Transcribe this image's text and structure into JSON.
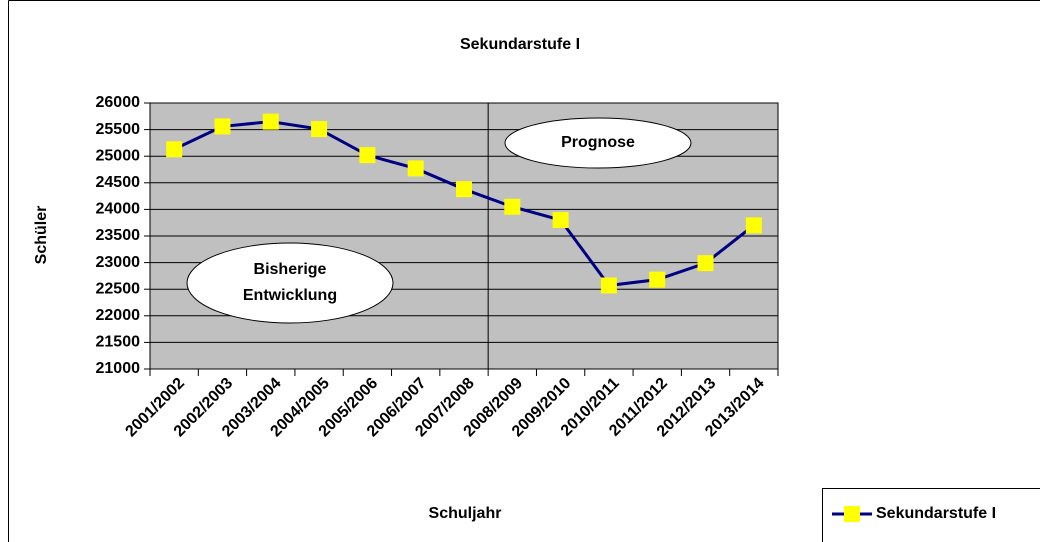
{
  "chart_data": {
    "type": "line",
    "title": "Sekundarstufe I",
    "x_label": "Schuljahr",
    "y_label": "Schüler",
    "categories": [
      "2001/2002",
      "2002/2003",
      "2003/2004",
      "2004/2005",
      "2005/2006",
      "2006/2007",
      "2007/2008",
      "2008/2009",
      "2009/2010",
      "2010/2011",
      "2011/2012",
      "2012/2013",
      "2013/2014"
    ],
    "series": [
      {
        "name": "Sekundarstufe I",
        "color": "#000080",
        "marker_color": "#ffff00",
        "values": [
          25130,
          25560,
          25650,
          25510,
          25020,
          24770,
          24380,
          24050,
          23800,
          22570,
          22680,
          22990,
          23700
        ]
      }
    ],
    "ylim": [
      21000,
      26000
    ],
    "yticks": [
      21000,
      21500,
      22000,
      22500,
      23000,
      23500,
      24000,
      24500,
      25000,
      25500,
      26000
    ],
    "grid": true,
    "plot_background": "#c0c0c0",
    "legend": "bottom-right",
    "annotations": [
      {
        "lines": [
          "Prognose"
        ]
      },
      {
        "lines": [
          "Bisherige",
          "Entwicklung"
        ]
      }
    ]
  }
}
